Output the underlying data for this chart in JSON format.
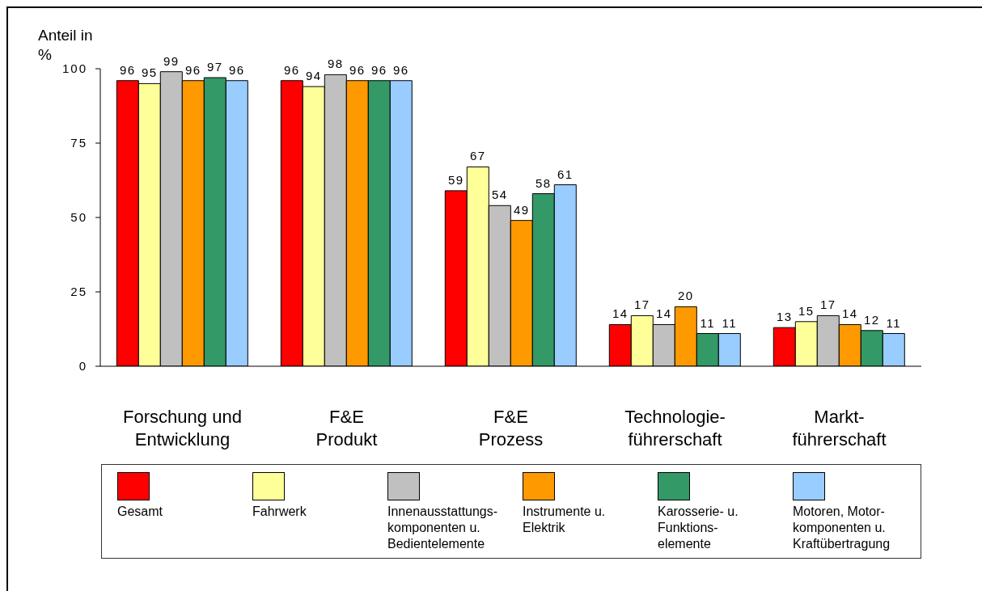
{
  "chart_data": {
    "type": "bar",
    "ylabel": "Anteil in\n%",
    "categories": [
      "Forschung und\nEntwicklung",
      "F&E\nProdukt",
      "F&E\nProzess",
      "Technologie-\nführerschaft",
      "Markt-\nführerschaft"
    ],
    "series": [
      {
        "name": "Gesamt",
        "color": "#ff0000",
        "values": [
          96,
          96,
          59,
          14,
          13
        ]
      },
      {
        "name": "Fahrwerk",
        "color": "#ffff99",
        "values": [
          95,
          94,
          67,
          17,
          15
        ]
      },
      {
        "name": "Innenausstattungs-\nkomponenten u.\nBedientelemente",
        "color": "#c0c0c0",
        "values": [
          99,
          98,
          54,
          14,
          17
        ]
      },
      {
        "name": "Instrumente u.\nElektrik",
        "color": "#ff9900",
        "values": [
          96,
          96,
          49,
          20,
          14
        ]
      },
      {
        "name": "Karosserie- u.\nFunktions-\nelemente",
        "color": "#339966",
        "values": [
          97,
          96,
          58,
          11,
          12
        ]
      },
      {
        "name": "Motoren, Motor-\nkomponenten u.\nKraftübertragung",
        "color": "#99ccff",
        "values": [
          96,
          96,
          61,
          11,
          11
        ]
      }
    ],
    "ylim": [
      0,
      100
    ],
    "yticks": [
      0,
      25,
      50,
      75,
      100
    ],
    "data_labels": true,
    "legend": "bottom"
  }
}
